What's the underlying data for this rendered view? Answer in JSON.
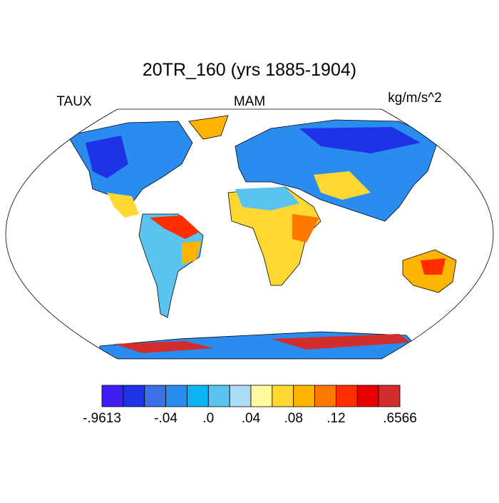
{
  "title": "20TR_160 (yrs 1885-1904)",
  "left_label": "TAUX",
  "center_label": "MAM",
  "right_label": "kg/m/s^2",
  "colorbar": {
    "colors": [
      "#3f1ef5",
      "#1e32e6",
      "#3c6ee6",
      "#2b8cf0",
      "#0fb4f5",
      "#5ac3f0",
      "#aadcf5",
      "#fffaa0",
      "#ffd732",
      "#ffb400",
      "#ff7800",
      "#ff2d00",
      "#e60000",
      "#d22d2d"
    ],
    "boundary_labels": [
      "-.9613",
      null,
      null,
      "-.04",
      null,
      ".0",
      null,
      ".04",
      null,
      ".08",
      null,
      ".12",
      null,
      null,
      ".6566"
    ]
  }
}
